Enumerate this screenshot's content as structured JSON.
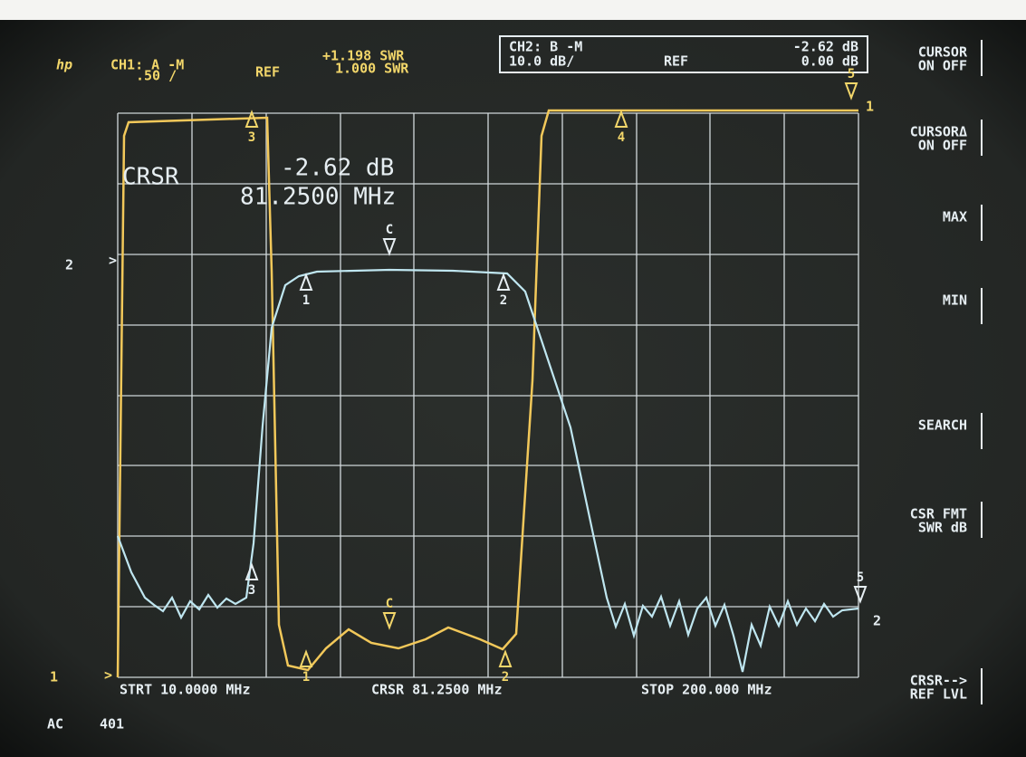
{
  "header": {
    "logo": "hp",
    "ch1": "CH1: A  -M",
    "ch1_scale": ".50 /",
    "ch1_ref": "REF",
    "ch1_value": "+1.198 SWR",
    "ch1_ref_value": "1.000 SWR",
    "ch2": "CH2: B  -M",
    "ch2_scale": "10.0 dB/",
    "ch2_ref": "REF",
    "ch2_value": "-2.62 dB",
    "ch2_ref_value": "0.00 dB"
  },
  "cursor_readout": {
    "label": "CRSR",
    "value": "-2.62  dB",
    "frequency": "81.2500  MHz"
  },
  "footer": {
    "start": "STRT 10.0000 MHz",
    "cursor": "CRSR 81.2500 MHz",
    "stop": "STOP 200.000 MHz",
    "coupling": "AC",
    "points": "401"
  },
  "softkeys": [
    {
      "line1": "CURSOR",
      "line2": "ON OFF"
    },
    {
      "line1": "CURSORΔ",
      "line2": "ON OFF"
    },
    {
      "line1": "MAX"
    },
    {
      "line1": "MIN"
    },
    {
      "line1": "SEARCH"
    },
    {
      "line1": "CSR FMT",
      "line2": "SWR  dB"
    },
    {
      "line1": "CRSR-->",
      "line2": "REF LVL"
    }
  ],
  "reference_marks": {
    "ch2_left": "2",
    "ch1_left": "1",
    "ch1_right": "1",
    "ch2_right": "2"
  },
  "ch1_markers": [
    "3",
    "4",
    "5",
    "1",
    "C",
    "2"
  ],
  "ch2_markers": [
    "1",
    "C",
    "2",
    "3",
    "5"
  ]
}
